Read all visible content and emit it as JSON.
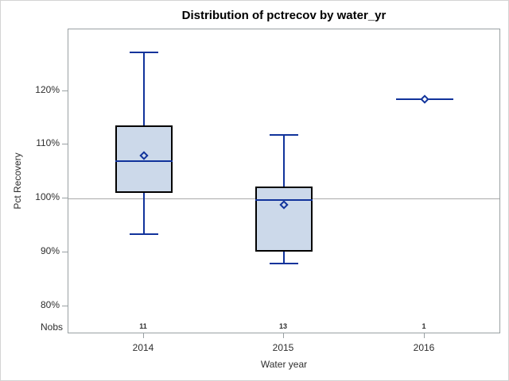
{
  "window": {
    "background": "#ffffff",
    "border_color": "#d3d3d3"
  },
  "chart_data": {
    "type": "box",
    "title": "Distribution of pctrecov by water_yr",
    "xlabel": "Water year",
    "ylabel": "Pct Recovery",
    "categories": [
      "2014",
      "2015",
      "2016"
    ],
    "nobs": {
      "label": "Nobs",
      "values": [
        "11",
        "13",
        "1"
      ]
    },
    "y_axis": {
      "ticks": [
        80,
        90,
        100,
        110,
        120
      ],
      "tick_suffix": "%",
      "approx_range": [
        74.8,
        131.4
      ]
    },
    "reference_line_y": 100,
    "grid": false,
    "legend": "none",
    "series": [
      {
        "category": "2014",
        "n": 11,
        "min": 93.4,
        "q1": 101.0,
        "median": 107.0,
        "q3": 113.6,
        "max": 127.2,
        "mean": 108.0
      },
      {
        "category": "2015",
        "n": 13,
        "min": 88.0,
        "q1": 90.2,
        "median": 99.8,
        "q3": 102.3,
        "max": 111.8,
        "mean": 98.8
      },
      {
        "category": "2016",
        "n": 1,
        "min": 118.5,
        "q1": 118.5,
        "median": 118.5,
        "q3": 118.5,
        "max": 118.5,
        "mean": 118.5
      }
    ],
    "colors": {
      "line": "#11339b",
      "box_fill": "#ccd9ea",
      "box_border": "#000000",
      "axis": "#99a0a3",
      "reference": "#aaaaaa",
      "text": "#2e2e2e",
      "title_text": "#000000"
    }
  }
}
